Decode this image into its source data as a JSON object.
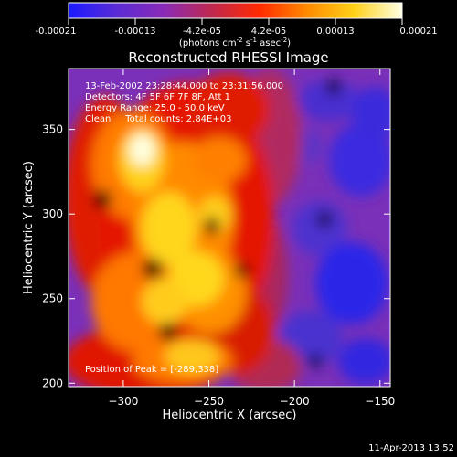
{
  "colorbar": {
    "ticks": [
      "-0.00021",
      "-0.00013",
      "-4.2e-05",
      "4.2e-05",
      "0.00013",
      "0.00021"
    ],
    "unit_main": "(photons cm",
    "unit_exp1": "-2",
    "unit_mid": " s",
    "unit_exp2": "-1",
    "unit_end": " asec",
    "unit_exp3": "-2",
    "unit_close": ")",
    "stops": [
      "#1a1aff",
      "#5a2bd6",
      "#8a2bb8",
      "#c0284f",
      "#ff2a00",
      "#ff8a00",
      "#ffd11a",
      "#ffffe6"
    ]
  },
  "chart_data": {
    "type": "heatmap",
    "title": "Reconstructed RHESSI Image",
    "xlabel": "Heliocentric X (arcsec)",
    "ylabel": "Heliocentric Y (arcsec)",
    "xlim": [
      -332,
      -144
    ],
    "ylim": [
      198,
      386
    ],
    "xticks": [
      -300,
      -250,
      -200,
      -150
    ],
    "xtick_labels": [
      "−300",
      "−250",
      "−200",
      "−150"
    ],
    "yticks": [
      200,
      250,
      300,
      350
    ],
    "ytick_labels": [
      "200",
      "250",
      "300",
      "350"
    ],
    "value_range": [
      -0.00021,
      0.00021
    ],
    "annotations": [
      "13-Feb-2002 23:28:44.000 to 23:31:56.000",
      "Detectors: 4F 5F 6F 7F 8F, Att 1",
      "Energy Range: 25.0 - 50.0 keV",
      "Clean     Total counts: 2.84E+03"
    ],
    "peak_label": "Position of Peak = [-289,338]",
    "peak": [
      -289,
      338
    ]
  },
  "footer": {
    "timestamp": "11-Apr-2013 13:52"
  }
}
